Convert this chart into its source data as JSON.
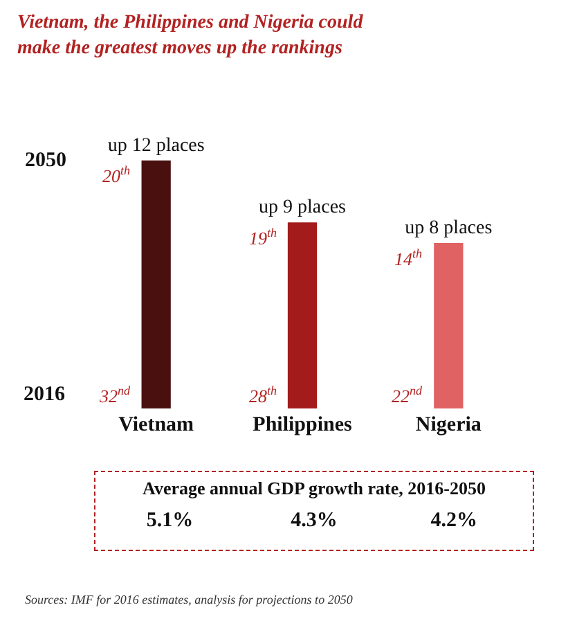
{
  "chart_data": [
    {
      "type": "bar",
      "title": "Vietnam, the Philippines and Nigeria could make the greatest moves up the rankings",
      "categories": [
        "Vietnam",
        "Philippines",
        "Nigeria"
      ],
      "values": [
        12,
        9,
        8
      ],
      "colors": [
        "#4a1010",
        "#a31b1b",
        "#e06262"
      ],
      "value_labels": [
        "up 12 places",
        "up 9 places",
        "up 8 places"
      ],
      "annotations": [
        "2050",
        "2016",
        {
          "text": "20$^{th}$",
          "x": "Vietnam",
          "y": 12
        },
        {
          "text": "32$^{nd}$",
          "x": "Vietnam",
          "y": 0
        },
        {
          "text": "19$^{th}$",
          "x": "Philippines",
          "y": 9
        },
        {
          "text": "28$^{th}$",
          "x": "Philippines",
          "y": 0
        },
        {
          "text": "14$^{th}$",
          "x": "Nigeria",
          "y": 8
        },
        {
          "text": "22$^{nd}$",
          "x": "Nigeria",
          "y": 0
        },
        "Sources: IMF for 2016 estimates, analysis for projections to 2050"
      ]
    },
    {
      "type": "other",
      "title": "Average annual GDP growth rate, 2016-2050",
      "values": [
        5.1,
        4.3,
        4.2
      ],
      "value_labels": [
        "5.1%",
        "4.3%",
        "4.2%"
      ]
    }
  ]
}
